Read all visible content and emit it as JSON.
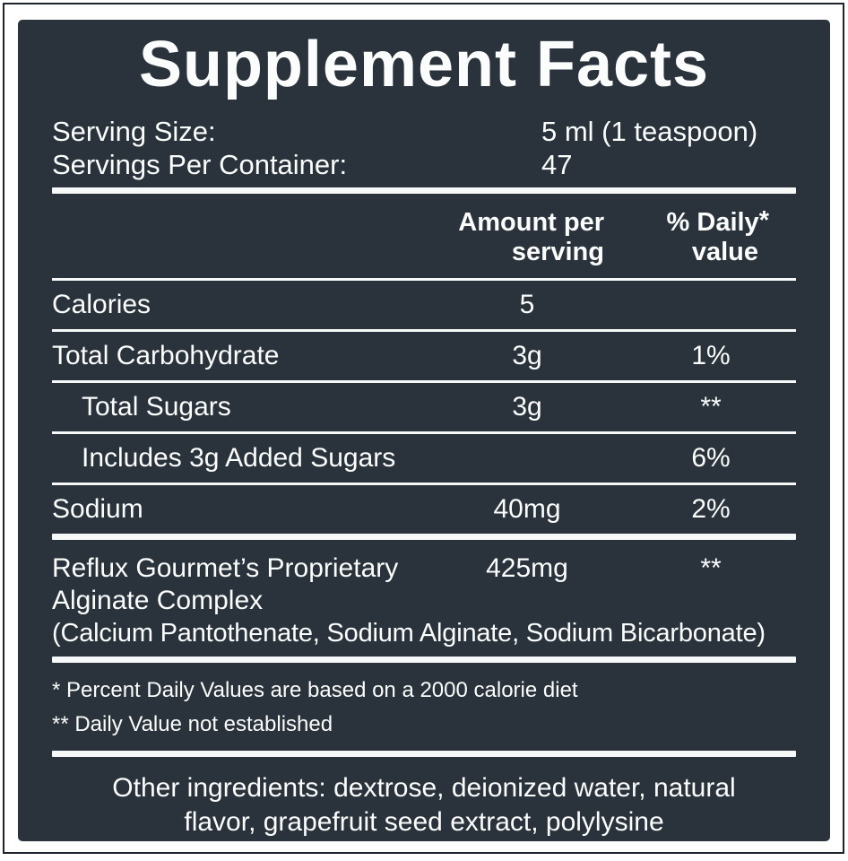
{
  "title": "Supplement Facts",
  "colors": {
    "panel_bg": "#2a333b",
    "text": "#fbfcfc",
    "rule": "#f7f9f9",
    "frame": "#1d242b",
    "page_bg": "#ffffff"
  },
  "serving_info": {
    "serving_size_label": "Serving Size:",
    "serving_size_value": "5 ml (1 teaspoon)",
    "servings_per_container_label": "Servings Per Container:",
    "servings_per_container_value": "47"
  },
  "table": {
    "headers": {
      "amount_line1": "Amount per",
      "amount_line2": "serving",
      "dv_line1": "% Daily",
      "dv_asterisk": "*",
      "dv_line2": "value"
    },
    "rows": [
      {
        "name": "Calories",
        "amount": "5",
        "dv": ""
      },
      {
        "name": "Total Carbohydrate",
        "amount": "3g",
        "dv": "1%"
      },
      {
        "name": "Total Sugars",
        "amount": "3g",
        "dv": "**"
      },
      {
        "name": "Includes 3g Added Sugars",
        "amount": "",
        "dv": "6%"
      },
      {
        "name": "Sodium",
        "amount": "40mg",
        "dv": "2%"
      }
    ],
    "proprietary": {
      "name_line1": "Reflux Gourmet’s Proprietary",
      "name_line2": "Alginate Complex",
      "amount": "425mg",
      "dv": "**",
      "components": "(Calcium Pantothenate, Sodium Alginate, Sodium Bicarbonate)"
    }
  },
  "footnotes": {
    "daily_value_note": "* Percent Daily Values are based on a 2000 calorie diet",
    "not_established_note": "** Daily Value not established"
  },
  "other_ingredients": "Other ingredients: dextrose, deionized water, natural flavor, grapefruit seed extract, polylysine"
}
